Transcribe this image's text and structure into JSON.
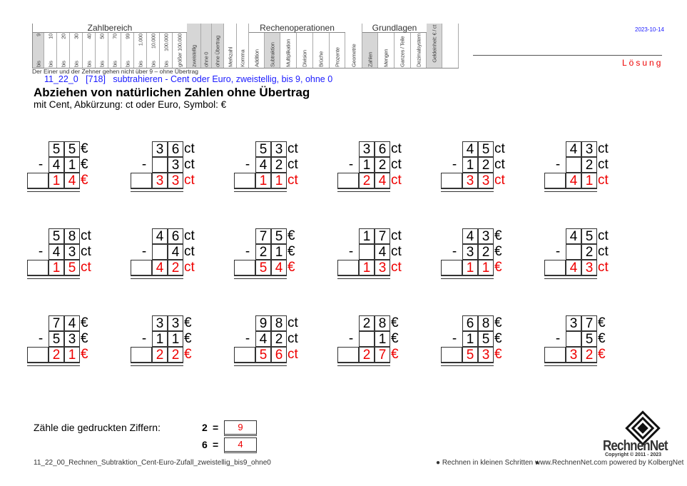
{
  "header": {
    "groups": {
      "zahlbereich": "Zahlbereich",
      "rechenoperationen": "Rechenoperationen",
      "grundlagen": "Grundlagen"
    },
    "columns": [
      {
        "top": "9",
        "bottom": "bis",
        "selected": true
      },
      {
        "top": "10",
        "bottom": "bis",
        "selected": false
      },
      {
        "top": "20",
        "bottom": "bis",
        "selected": false
      },
      {
        "top": "30",
        "bottom": "bis",
        "selected": false
      },
      {
        "top": "40",
        "bottom": "bis",
        "selected": false
      },
      {
        "top": "50",
        "bottom": "bis",
        "selected": false
      },
      {
        "top": "70",
        "bottom": "bis",
        "selected": false
      },
      {
        "top": "99",
        "bottom": "bis",
        "selected": false
      },
      {
        "top": "1.000",
        "bottom": "bis",
        "selected": false
      },
      {
        "top": "10.000",
        "bottom": "bis",
        "selected": false
      },
      {
        "top": "100.000",
        "bottom": "bis",
        "selected": false
      },
      {
        "top": "",
        "bottom": "größer 100.000",
        "selected": false
      },
      {
        "top": "",
        "bottom": "zweistellig",
        "selected": true
      },
      {
        "top": "",
        "bottom": "ohne 0",
        "selected": true
      },
      {
        "top": "",
        "bottom": "ohne Übertrag",
        "selected": true
      },
      {
        "top": "",
        "bottom": "Merkzahl",
        "selected": false
      },
      {
        "top": "",
        "bottom": "Komma",
        "selected": false
      },
      {
        "top": "",
        "bottom": "Addition",
        "selected": false
      },
      {
        "top": "",
        "bottom": "Subtraktion",
        "selected": true
      },
      {
        "top": "",
        "bottom": "Multiplikation",
        "selected": false
      },
      {
        "top": "",
        "bottom": "Division",
        "selected": false
      },
      {
        "top": "",
        "bottom": "Brüche",
        "selected": false
      },
      {
        "top": "",
        "bottom": "Prozente",
        "selected": false
      },
      {
        "top": "",
        "bottom": "Geometrie",
        "selected": false
      },
      {
        "top": "",
        "bottom": "Zahlen",
        "selected": true
      },
      {
        "top": "",
        "bottom": "Mengen",
        "selected": false
      },
      {
        "top": "",
        "bottom": "Ganzes / Teile",
        "selected": false
      },
      {
        "top": "",
        "bottom": "Dezimalsystem",
        "selected": false
      },
      {
        "top": "",
        "bottom": "Geldeinheit: € / ct",
        "selected": true
      },
      {
        "top": "",
        "bottom": "",
        "selected": false
      }
    ],
    "note": "Der Einer und der Zehner gehen nicht über 9 – ohne Übertrag",
    "date": "2023-10-14",
    "solution_label": "Lösung"
  },
  "code_line": "11_22_0   [718]   subtrahieren - Cent oder Euro, zweistellig, bis 9, ohne 0",
  "title": "Abziehen von natürlichen Zahlen ohne Übertrag",
  "subtitle": "mit Cent, Abkürzung: ct oder Euro, Symbol: €",
  "operator": "-",
  "problems": [
    {
      "a": [
        "5",
        "5"
      ],
      "b": [
        "4",
        "1"
      ],
      "r": [
        "1",
        "4"
      ],
      "unit": "€"
    },
    {
      "a": [
        "3",
        "6"
      ],
      "b": [
        "",
        "3"
      ],
      "r": [
        "3",
        "3"
      ],
      "unit": "ct"
    },
    {
      "a": [
        "5",
        "3"
      ],
      "b": [
        "4",
        "2"
      ],
      "r": [
        "1",
        "1"
      ],
      "unit": "ct"
    },
    {
      "a": [
        "3",
        "6"
      ],
      "b": [
        "1",
        "2"
      ],
      "r": [
        "2",
        "4"
      ],
      "unit": "ct"
    },
    {
      "a": [
        "4",
        "5"
      ],
      "b": [
        "1",
        "2"
      ],
      "r": [
        "3",
        "3"
      ],
      "unit": "ct"
    },
    {
      "a": [
        "4",
        "3"
      ],
      "b": [
        "",
        "2"
      ],
      "r": [
        "4",
        "1"
      ],
      "unit": "ct"
    },
    {
      "a": [
        "5",
        "8"
      ],
      "b": [
        "4",
        "3"
      ],
      "r": [
        "1",
        "5"
      ],
      "unit": "ct"
    },
    {
      "a": [
        "4",
        "6"
      ],
      "b": [
        "",
        "4"
      ],
      "r": [
        "4",
        "2"
      ],
      "unit": "ct"
    },
    {
      "a": [
        "7",
        "5"
      ],
      "b": [
        "2",
        "1"
      ],
      "r": [
        "5",
        "4"
      ],
      "unit": "€"
    },
    {
      "a": [
        "1",
        "7"
      ],
      "b": [
        "",
        "4"
      ],
      "r": [
        "1",
        "3"
      ],
      "unit": "ct"
    },
    {
      "a": [
        "4",
        "3"
      ],
      "b": [
        "3",
        "2"
      ],
      "r": [
        "1",
        "1"
      ],
      "unit": "€"
    },
    {
      "a": [
        "4",
        "5"
      ],
      "b": [
        "",
        "2"
      ],
      "r": [
        "4",
        "3"
      ],
      "unit": "ct"
    },
    {
      "a": [
        "7",
        "4"
      ],
      "b": [
        "5",
        "3"
      ],
      "r": [
        "2",
        "1"
      ],
      "unit": "€"
    },
    {
      "a": [
        "3",
        "3"
      ],
      "b": [
        "1",
        "1"
      ],
      "r": [
        "2",
        "2"
      ],
      "unit": "€"
    },
    {
      "a": [
        "9",
        "8"
      ],
      "b": [
        "4",
        "2"
      ],
      "r": [
        "5",
        "6"
      ],
      "unit": "ct"
    },
    {
      "a": [
        "2",
        "8"
      ],
      "b": [
        "",
        "1"
      ],
      "r": [
        "2",
        "7"
      ],
      "unit": "€"
    },
    {
      "a": [
        "6",
        "8"
      ],
      "b": [
        "1",
        "5"
      ],
      "r": [
        "5",
        "3"
      ],
      "unit": "€"
    },
    {
      "a": [
        "3",
        "7"
      ],
      "b": [
        "",
        "5"
      ],
      "r": [
        "3",
        "2"
      ],
      "unit": "€"
    }
  ],
  "count": {
    "label": "Zähle die gedruckten Ziffern:",
    "items": [
      {
        "digit": "2",
        "eq": "=",
        "answer": "9"
      },
      {
        "digit": "6",
        "eq": "=",
        "answer": "4"
      }
    ]
  },
  "footer": {
    "filename": "11_22_00_Rechnen_Subtraktion_Cent-Euro-Zufall_zweistellig_bis9_ohne0",
    "slogan": "● Rechnen in kleinen Schritten ●",
    "website": "www.RechnenNet.com powered by KolbergNet",
    "logo_text": "RechnenNet",
    "copyright": "Copyright © 2011 - 2023"
  },
  "colors": {
    "answer": "#e00000",
    "highlight": "#d6d6d6",
    "code_line": "#1a1aff",
    "solution": "#e00000"
  }
}
